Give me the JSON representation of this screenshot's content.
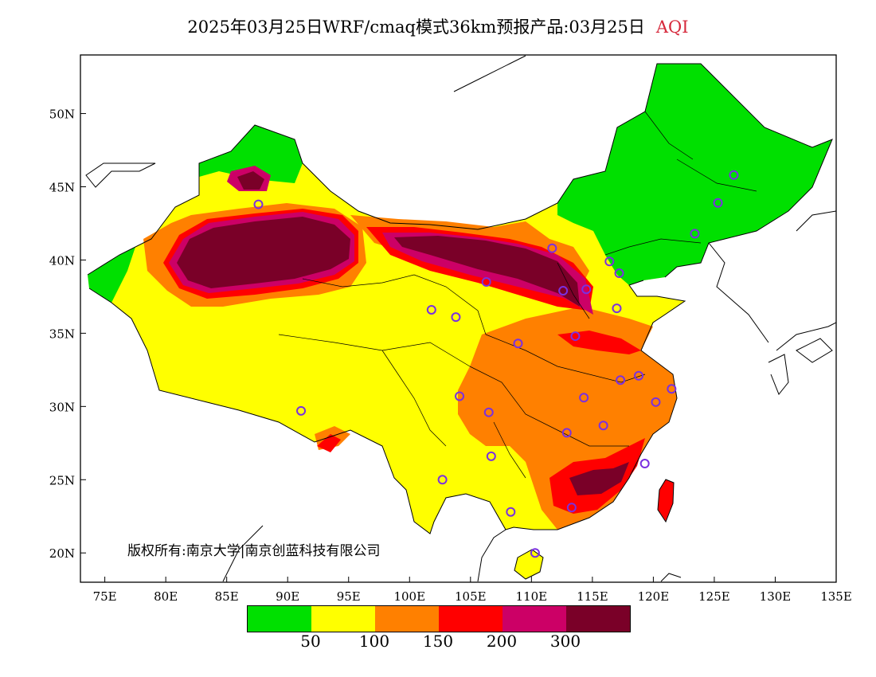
{
  "title": {
    "main": "2025年03月25日WRF/cmaq模式36km预报产品:03月25日",
    "variable": "AQI"
  },
  "copyright": "版权所有:南京大学|南京创蓝科技有限公司",
  "colors": {
    "good": "#00e000",
    "moderate": "#ffff00",
    "light": "#ff8000",
    "medium": "#ff0000",
    "heavy": "#cc0066",
    "severe": "#7a0028"
  },
  "legend": {
    "swatches": [
      "#00e000",
      "#ffff00",
      "#ff8000",
      "#ff0000",
      "#cc0066",
      "#7a0028"
    ],
    "labels": [
      "50",
      "100",
      "150",
      "200",
      "300"
    ]
  },
  "chart_data": {
    "type": "heatmap",
    "x_ticks": [
      "75E",
      "80E",
      "85E",
      "90E",
      "95E",
      "100E",
      "105E",
      "110E",
      "115E",
      "120E",
      "125E",
      "130E",
      "135E"
    ],
    "y_ticks": [
      "20N",
      "25N",
      "30N",
      "35N",
      "40N",
      "45N",
      "50N"
    ],
    "xlim": [
      73,
      135
    ],
    "ylim": [
      18,
      54
    ],
    "levels": [
      50,
      100,
      150,
      200,
      300
    ],
    "stations": [
      [
        87.6,
        43.8
      ],
      [
        91.1,
        29.7
      ],
      [
        101.8,
        36.6
      ],
      [
        103.8,
        36.1
      ],
      [
        106.3,
        38.5
      ],
      [
        104.1,
        30.7
      ],
      [
        106.5,
        29.6
      ],
      [
        106.7,
        26.6
      ],
      [
        102.7,
        25.0
      ],
      [
        108.3,
        22.8
      ],
      [
        110.3,
        20.0
      ],
      [
        113.3,
        23.1
      ],
      [
        112.9,
        28.2
      ],
      [
        114.3,
        30.6
      ],
      [
        115.9,
        28.7
      ],
      [
        117.3,
        31.8
      ],
      [
        118.8,
        32.1
      ],
      [
        120.2,
        30.3
      ],
      [
        121.5,
        31.2
      ],
      [
        119.3,
        26.1
      ],
      [
        113.6,
        34.8
      ],
      [
        108.9,
        34.3
      ],
      [
        112.6,
        37.9
      ],
      [
        114.5,
        38.0
      ],
      [
        117.2,
        39.1
      ],
      [
        116.4,
        39.9
      ],
      [
        117.0,
        36.7
      ],
      [
        111.7,
        40.8
      ],
      [
        123.4,
        41.8
      ],
      [
        125.3,
        43.9
      ],
      [
        126.6,
        45.8
      ]
    ]
  }
}
